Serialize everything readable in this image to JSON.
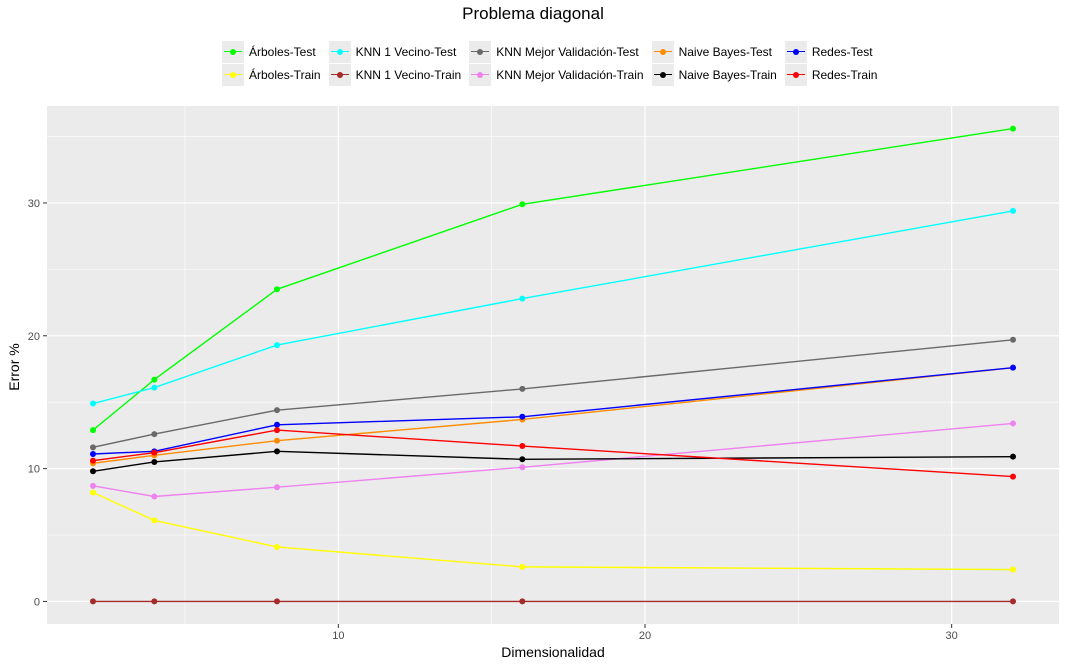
{
  "chart_data": {
    "type": "line",
    "title": "Problema diagonal",
    "xlabel": "Dimensionalidad",
    "ylabel": "Error %",
    "x": [
      2,
      4,
      8,
      16,
      32
    ],
    "xlim": [
      0.5,
      33.5
    ],
    "ylim": [
      -1.7,
      37.3
    ],
    "x_ticks": [
      10,
      20,
      30
    ],
    "y_ticks": [
      0,
      10,
      20,
      30
    ],
    "grid": true,
    "legend_position": "top",
    "series": [
      {
        "name": "Árboles-Test",
        "color": "#00ff00",
        "values": [
          12.9,
          16.7,
          23.5,
          29.9,
          35.6
        ]
      },
      {
        "name": "Árboles-Train",
        "color": "#ffff00",
        "values": [
          8.2,
          6.1,
          4.1,
          2.6,
          2.4
        ]
      },
      {
        "name": "KNN 1 Vecino-Test",
        "color": "#00ffff",
        "values": [
          14.9,
          16.1,
          19.3,
          22.8,
          29.4
        ]
      },
      {
        "name": "KNN 1 Vecino-Train",
        "color": "#a52a2a",
        "values": [
          0,
          0,
          0,
          0,
          0
        ]
      },
      {
        "name": "KNN Mejor Validación-Test",
        "color": "#696969",
        "values": [
          11.6,
          12.6,
          14.4,
          16.0,
          19.7
        ]
      },
      {
        "name": "KNN Mejor Validación-Train",
        "color": "#ee82ee",
        "values": [
          8.7,
          7.9,
          8.6,
          10.1,
          13.4
        ]
      },
      {
        "name": "Naive Bayes-Test",
        "color": "#ff8c00",
        "values": [
          10.4,
          11.0,
          12.1,
          13.7,
          17.6
        ]
      },
      {
        "name": "Naive Bayes-Train",
        "color": "#000000",
        "values": [
          9.8,
          10.5,
          11.3,
          10.7,
          10.9
        ]
      },
      {
        "name": "Redes-Test",
        "color": "#0000ff",
        "values": [
          11.1,
          11.3,
          13.3,
          13.9,
          17.6
        ]
      },
      {
        "name": "Redes-Train",
        "color": "#ff0000",
        "values": [
          10.6,
          11.2,
          12.9,
          11.7,
          9.4
        ]
      }
    ]
  }
}
